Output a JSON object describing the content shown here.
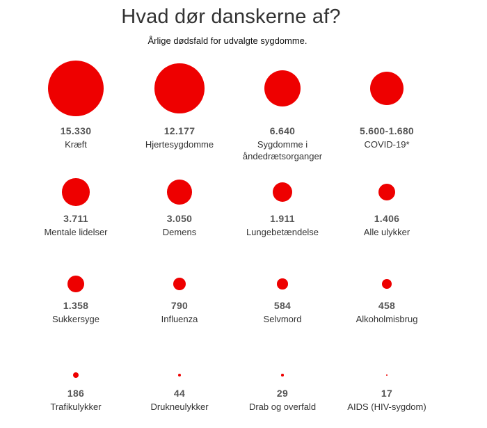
{
  "header": {
    "title": "Hvad dør danskerne af?",
    "subtitle": "Årlige dødsfald for udvalgte sygdomme."
  },
  "colors": {
    "bubble": "#ee0000",
    "value_text": "#555555",
    "label_text": "#333333"
  },
  "chart_data": {
    "type": "bubble-grid",
    "title": "Hvad dør danskerne af?",
    "subtitle": "Årlige dødsfald for udvalgte sygdomme.",
    "items": [
      {
        "value": 15330,
        "value_label": "15.330",
        "label": "Kræft"
      },
      {
        "value": 12177,
        "value_label": "12.177",
        "label": "Hjertesygdomme"
      },
      {
        "value": 6640,
        "value_label": "6.640",
        "label": "Sygdomme i\nåndedrætsorganger"
      },
      {
        "value": 5600,
        "value_low": 1680,
        "value_label": "5.600-1.680",
        "label": "COVID-19*"
      },
      {
        "value": 3711,
        "value_label": "3.711",
        "label": "Mentale lidelser"
      },
      {
        "value": 3050,
        "value_label": "3.050",
        "label": "Demens"
      },
      {
        "value": 1911,
        "value_label": "1.911",
        "label": "Lungebetændelse"
      },
      {
        "value": 1406,
        "value_label": "1.406",
        "label": "Alle ulykker"
      },
      {
        "value": 1358,
        "value_label": "1.358",
        "label": "Sukkersyge"
      },
      {
        "value": 790,
        "value_label": "790",
        "label": "Influenza"
      },
      {
        "value": 584,
        "value_label": "584",
        "label": "Selvmord"
      },
      {
        "value": 458,
        "value_label": "458",
        "label": "Alkoholmisbrug"
      },
      {
        "value": 186,
        "value_label": "186",
        "label": "Trafikulykker"
      },
      {
        "value": 44,
        "value_label": "44",
        "label": "Drukneulykker"
      },
      {
        "value": 29,
        "value_label": "29",
        "label": "Drab og overfald"
      },
      {
        "value": 17,
        "value_label": "17",
        "label": "AIDS (HIV-sygdom)"
      }
    ]
  }
}
